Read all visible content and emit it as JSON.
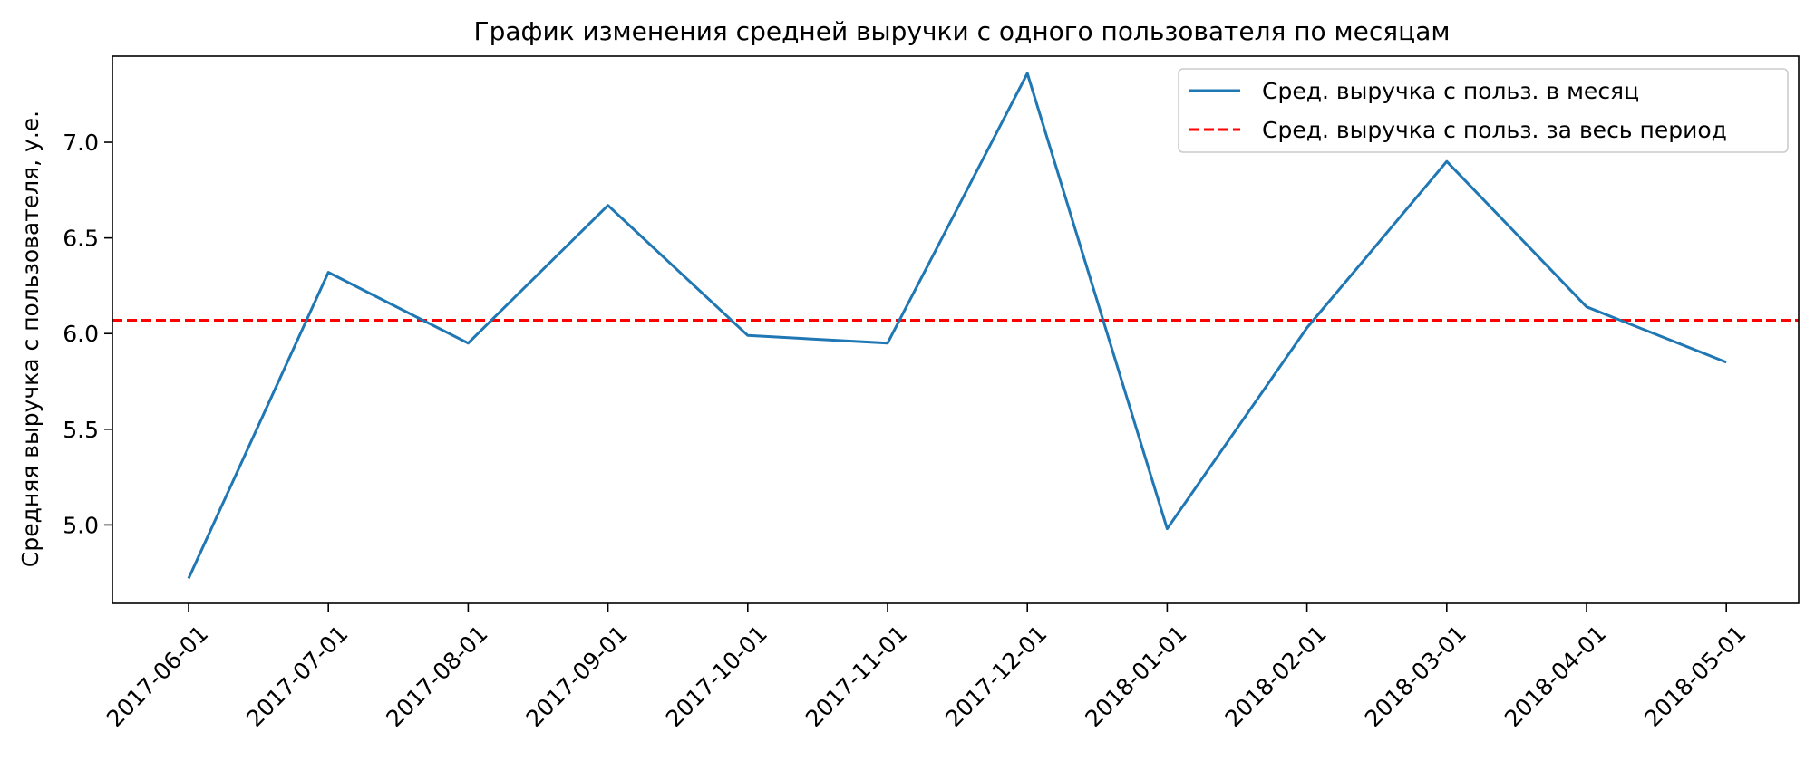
{
  "chart_data": {
    "type": "line",
    "title": "График изменения средней выручки с одного пользователя по месяцам",
    "xlabel": "",
    "ylabel": "Средняя выручка с пользователя, у.е.",
    "ylim": [
      4.59,
      7.45
    ],
    "x": [
      "2017-06-01",
      "2017-07-01",
      "2017-08-01",
      "2017-09-01",
      "2017-10-01",
      "2017-11-01",
      "2017-12-01",
      "2018-01-01",
      "2018-02-01",
      "2018-03-01",
      "2018-04-01",
      "2018-05-01"
    ],
    "yticks": [
      "5.0",
      "5.5",
      "6.0",
      "6.5",
      "7.0"
    ],
    "series": [
      {
        "name": "Сред. выручка с польз. в месяц",
        "color": "#1f77b4",
        "style": "solid",
        "values": [
          4.72,
          6.32,
          5.95,
          6.67,
          5.99,
          5.95,
          7.36,
          4.98,
          6.03,
          6.9,
          6.14,
          5.85
        ]
      }
    ],
    "reference_lines": [
      {
        "name": "Сред. выручка с польз. за весь период",
        "color": "#ff0000",
        "style": "dashed",
        "y": 6.07
      }
    ],
    "grid": false,
    "legend": "top-right"
  }
}
